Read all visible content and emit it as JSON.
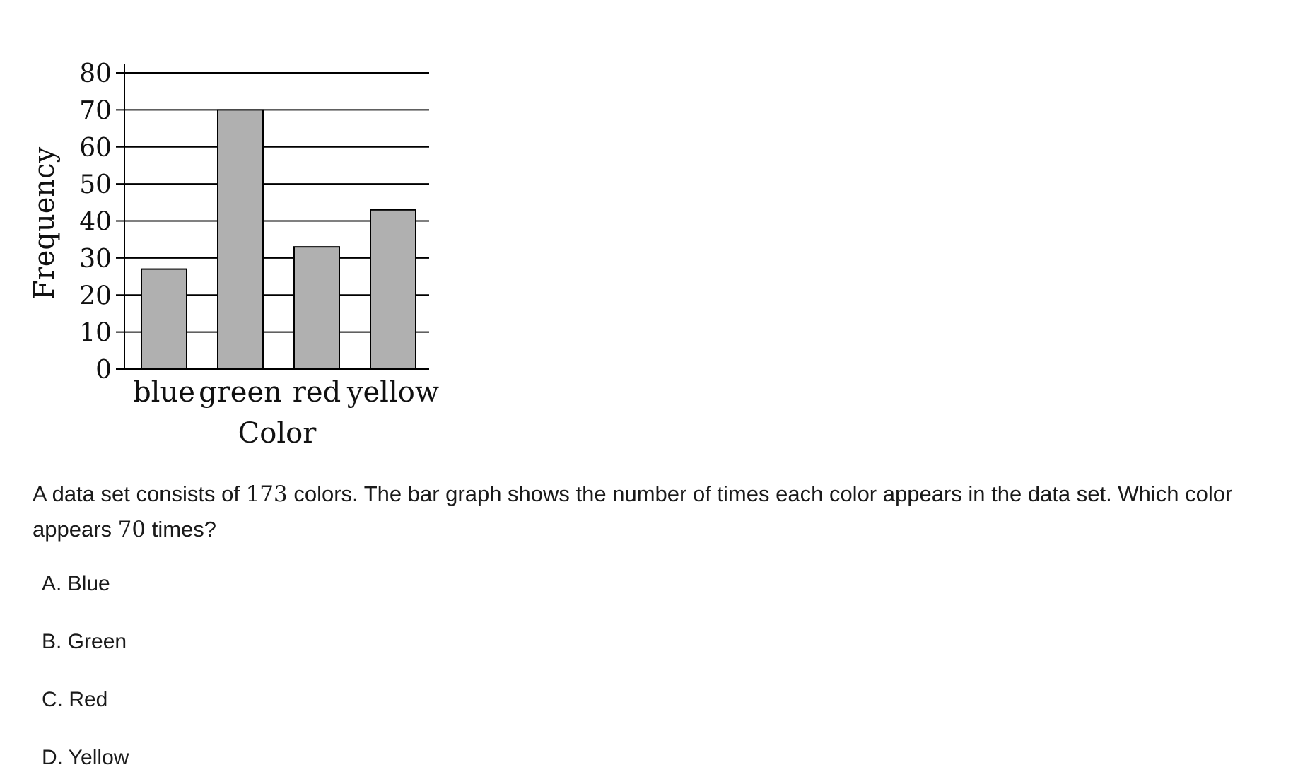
{
  "chart_data": {
    "type": "bar",
    "categories": [
      "blue",
      "green",
      "red",
      "yellow"
    ],
    "values": [
      27,
      70,
      33,
      43
    ],
    "xlabel": "Color",
    "ylabel": "Frequency",
    "ylim": [
      0,
      80
    ],
    "yticks": [
      0,
      10,
      20,
      30,
      40,
      50,
      60,
      70,
      80
    ],
    "grid": true,
    "bar_color": "#b0b0b0",
    "bar_edge_color": "#000000"
  },
  "question": {
    "part1": "A data set consists of ",
    "total": "173",
    "part2": " colors. The bar graph shows the number of times each color appears in the data set. Which color appears ",
    "count": "70",
    "part3": " times?"
  },
  "choices": [
    {
      "label": "A. Blue"
    },
    {
      "label": "B. Green"
    },
    {
      "label": "C. Red"
    },
    {
      "label": "D. Yellow"
    }
  ]
}
